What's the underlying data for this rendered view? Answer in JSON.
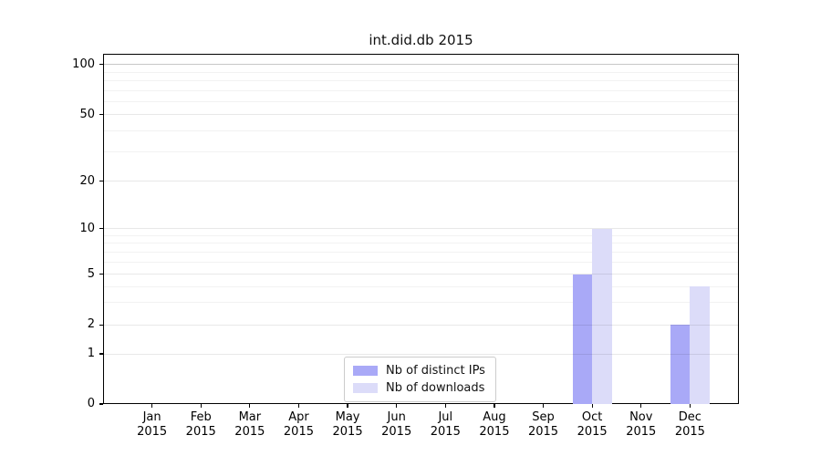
{
  "chart_data": {
    "type": "bar",
    "title": "int.did.db 2015",
    "categories": [
      "Jan",
      "Feb",
      "Mar",
      "Apr",
      "May",
      "Jun",
      "Jul",
      "Aug",
      "Sep",
      "Oct",
      "Nov",
      "Dec"
    ],
    "year_label": "2015",
    "series": [
      {
        "name": "Nb of distinct IPs",
        "color": "#a9a9f7",
        "values": [
          0,
          0,
          0,
          0,
          0,
          0,
          0,
          0,
          0,
          5,
          0,
          2
        ]
      },
      {
        "name": "Nb of downloads",
        "color": "#dcdcf9",
        "values": [
          0,
          0,
          0,
          0,
          0,
          0,
          0,
          0,
          0,
          10,
          0,
          4
        ]
      }
    ],
    "yticks": [
      0,
      1,
      2,
      5,
      10,
      20,
      50,
      100
    ],
    "ylim": [
      0,
      100
    ],
    "yscale": "log-like",
    "xlabel": "",
    "ylabel": "",
    "grid": true,
    "legend_position": "bottom-center"
  }
}
